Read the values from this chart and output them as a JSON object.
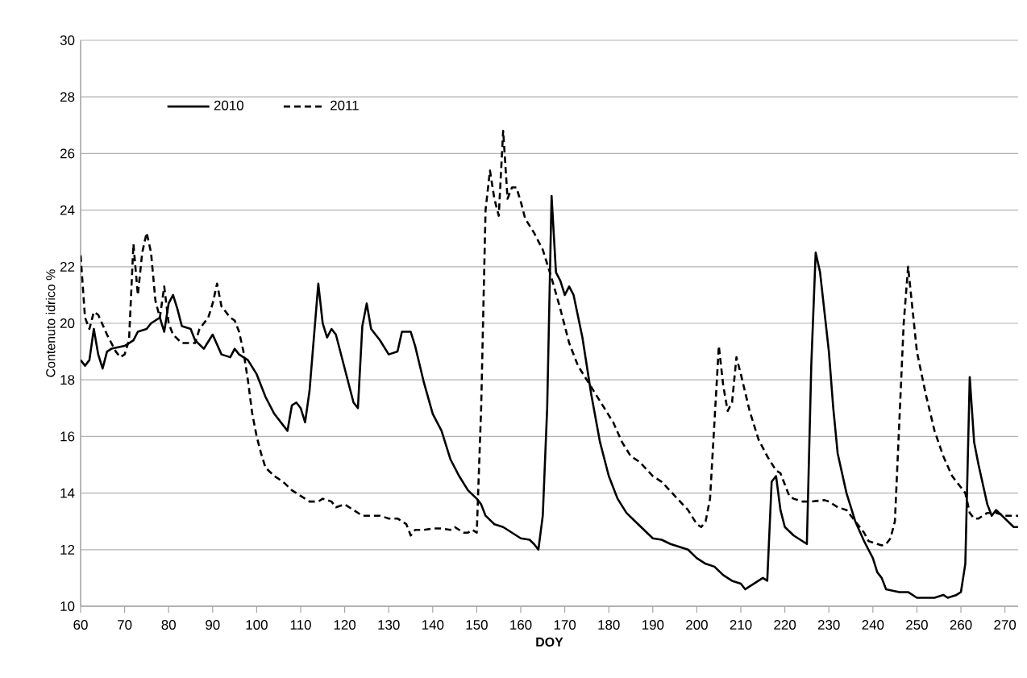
{
  "chart_data": {
    "type": "line",
    "xlabel": "DOY",
    "ylabel": "Contenuto idrico %",
    "xlim": [
      60,
      273
    ],
    "xticks": [
      60,
      70,
      80,
      90,
      100,
      110,
      120,
      130,
      140,
      150,
      160,
      170,
      180,
      190,
      200,
      210,
      220,
      230,
      240,
      250,
      260,
      270
    ],
    "ylim": [
      10,
      30
    ],
    "yticks": [
      10,
      12,
      14,
      16,
      18,
      20,
      22,
      24,
      26,
      28,
      30
    ],
    "grid": "y",
    "legend": "top left",
    "marker": "none",
    "series": [
      {
        "name": "2010",
        "color": "#000000",
        "line_style": "solid",
        "x": [
          60,
          61,
          62,
          63,
          64,
          65,
          66,
          67,
          70,
          72,
          73,
          75,
          76,
          78,
          79,
          80,
          81,
          82,
          83,
          85,
          86,
          88,
          90,
          92,
          94,
          95,
          96,
          98,
          100,
          102,
          104,
          106,
          107,
          108,
          109,
          110,
          111,
          112,
          114,
          115,
          116,
          117,
          118,
          120,
          122,
          123,
          124,
          125,
          126,
          128,
          130,
          132,
          133,
          134,
          135,
          136,
          138,
          140,
          142,
          144,
          146,
          148,
          150,
          151,
          152,
          154,
          156,
          158,
          160,
          162,
          163,
          164,
          165,
          166,
          167,
          168,
          169,
          170,
          171,
          172,
          174,
          176,
          178,
          180,
          182,
          184,
          186,
          188,
          190,
          192,
          194,
          196,
          198,
          200,
          202,
          204,
          206,
          208,
          210,
          211,
          212,
          214,
          215,
          216,
          217,
          218,
          219,
          220,
          222,
          224,
          225,
          226,
          227,
          228,
          230,
          231,
          232,
          234,
          236,
          238,
          240,
          241,
          242,
          243,
          246,
          248,
          250,
          252,
          254,
          256,
          257,
          259,
          260,
          261,
          262,
          263,
          264,
          266,
          267,
          268,
          270,
          272,
          273
        ],
        "values": [
          18.7,
          18.5,
          18.7,
          19.8,
          18.9,
          18.4,
          19.0,
          19.1,
          19.2,
          19.4,
          19.7,
          19.8,
          20.0,
          20.2,
          19.7,
          20.7,
          21.0,
          20.5,
          19.9,
          19.8,
          19.4,
          19.1,
          19.6,
          18.9,
          18.8,
          19.1,
          18.9,
          18.7,
          18.2,
          17.4,
          16.8,
          16.4,
          16.2,
          17.1,
          17.2,
          17.0,
          16.5,
          17.6,
          21.4,
          20.0,
          19.5,
          19.8,
          19.6,
          18.4,
          17.2,
          17.0,
          19.9,
          20.7,
          19.8,
          19.4,
          18.9,
          19.0,
          19.7,
          19.7,
          19.7,
          19.2,
          17.9,
          16.8,
          16.2,
          15.2,
          14.6,
          14.1,
          13.8,
          13.6,
          13.2,
          12.9,
          12.8,
          12.6,
          12.4,
          12.35,
          12.2,
          12.0,
          13.2,
          17.0,
          24.5,
          21.8,
          21.5,
          21.0,
          21.3,
          21.0,
          19.5,
          17.5,
          15.8,
          14.6,
          13.8,
          13.3,
          13.0,
          12.7,
          12.4,
          12.35,
          12.2,
          12.1,
          12.0,
          11.7,
          11.5,
          11.4,
          11.1,
          10.9,
          10.8,
          10.6,
          10.7,
          10.9,
          11.0,
          10.9,
          14.4,
          14.6,
          13.4,
          12.8,
          12.5,
          12.3,
          12.2,
          18.5,
          22.5,
          21.8,
          19.0,
          17.0,
          15.4,
          14.0,
          13.0,
          12.3,
          11.7,
          11.2,
          11.0,
          10.6,
          10.5,
          10.5,
          10.3,
          10.3,
          10.3,
          10.4,
          10.3,
          10.4,
          10.5,
          11.5,
          18.1,
          15.8,
          15.0,
          13.6,
          13.2,
          13.4,
          13.1,
          12.8,
          12.8
        ]
      },
      {
        "name": "2011",
        "color": "#000000",
        "line_style": "dashed",
        "x": [
          60,
          61,
          62,
          63,
          64,
          66,
          68,
          69,
          70,
          71,
          72,
          73,
          74,
          75,
          76,
          77,
          78,
          79,
          80,
          81,
          83,
          86,
          87,
          89,
          90,
          91,
          92,
          94,
          95,
          96,
          97,
          98,
          99,
          100,
          101,
          102,
          104,
          106,
          108,
          110,
          112,
          114,
          115,
          117,
          118,
          120,
          121,
          122,
          124,
          126,
          128,
          130,
          132,
          133,
          134,
          135,
          136,
          138,
          140,
          142,
          144,
          145,
          146,
          147,
          148,
          149,
          150,
          151,
          152,
          153,
          154,
          155,
          156,
          157,
          158,
          159,
          160,
          161,
          163,
          165,
          167,
          169,
          171,
          173,
          175,
          177,
          179,
          181,
          183,
          185,
          187,
          190,
          192,
          195,
          198,
          200,
          201,
          202,
          203,
          204,
          205,
          206,
          207,
          208,
          209,
          210,
          212,
          214,
          216,
          218,
          219,
          220,
          221,
          222,
          224,
          226,
          229,
          230,
          232,
          234,
          236,
          238,
          239,
          241,
          242,
          243,
          244,
          245,
          246,
          247,
          248,
          249,
          250,
          252,
          254,
          256,
          258,
          260,
          261,
          262,
          263,
          264,
          266,
          268,
          270,
          272,
          273
        ],
        "values": [
          22.4,
          20.2,
          19.8,
          20.4,
          20.3,
          19.6,
          19.0,
          18.8,
          18.9,
          19.4,
          22.8,
          21.0,
          22.5,
          23.2,
          22.5,
          20.8,
          20.2,
          21.3,
          20.0,
          19.6,
          19.3,
          19.3,
          19.8,
          20.2,
          20.7,
          21.4,
          20.6,
          20.2,
          20.1,
          19.7,
          19.0,
          18.0,
          16.8,
          16.0,
          15.4,
          14.9,
          14.6,
          14.4,
          14.1,
          13.9,
          13.7,
          13.7,
          13.8,
          13.7,
          13.5,
          13.6,
          13.5,
          13.4,
          13.2,
          13.2,
          13.2,
          13.1,
          13.1,
          13.0,
          12.9,
          12.5,
          12.7,
          12.7,
          12.75,
          12.75,
          12.7,
          12.8,
          12.7,
          12.6,
          12.6,
          12.7,
          12.6,
          17.0,
          24.0,
          25.4,
          24.4,
          23.8,
          26.8,
          24.4,
          24.8,
          24.8,
          24.3,
          23.7,
          23.2,
          22.6,
          21.6,
          20.5,
          19.3,
          18.5,
          18.0,
          17.5,
          17.0,
          16.5,
          15.8,
          15.3,
          15.1,
          14.6,
          14.4,
          13.9,
          13.4,
          12.9,
          12.8,
          13.0,
          13.8,
          16.5,
          19.2,
          17.8,
          16.9,
          17.2,
          18.8,
          18.2,
          16.9,
          15.9,
          15.3,
          14.8,
          14.7,
          14.3,
          13.9,
          13.8,
          13.7,
          13.7,
          13.75,
          13.7,
          13.5,
          13.4,
          13.0,
          12.6,
          12.3,
          12.2,
          12.15,
          12.2,
          12.4,
          13.0,
          16.5,
          20.0,
          22.0,
          20.5,
          19.0,
          17.5,
          16.2,
          15.3,
          14.6,
          14.2,
          14.0,
          13.3,
          13.1,
          13.1,
          13.3,
          13.3,
          13.2,
          13.2,
          13.2
        ]
      }
    ]
  }
}
